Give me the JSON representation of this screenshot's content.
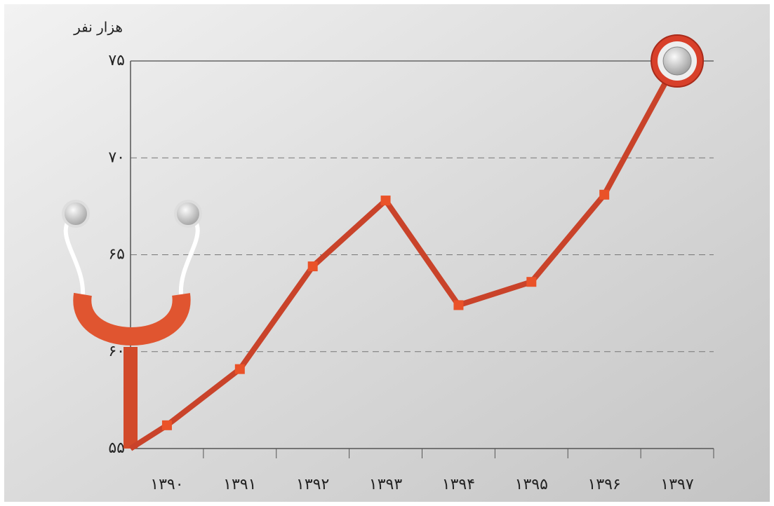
{
  "chart_data": {
    "type": "line",
    "y_label": "هزار نفر",
    "categories": [
      "۱۳۹۰",
      "۱۳۹۱",
      "۱۳۹۲",
      "۱۳۹۳",
      "۱۳۹۴",
      "۱۳۹۵",
      "۱۳۹۶",
      "۱۳۹۷"
    ],
    "values": [
      56.2,
      59.1,
      64.4,
      67.8,
      62.4,
      63.6,
      68.1,
      75
    ],
    "color": "#c9432a",
    "ylim": [
      55,
      75
    ],
    "yticks": [
      {
        "value": 55,
        "label": "۵۵"
      },
      {
        "value": 60,
        "label": "۶۰"
      },
      {
        "value": 65,
        "label": "۶۵"
      },
      {
        "value": 70,
        "label": "۷۰"
      },
      {
        "value": 75,
        "label": "۷۵"
      }
    ],
    "grid": true
  }
}
